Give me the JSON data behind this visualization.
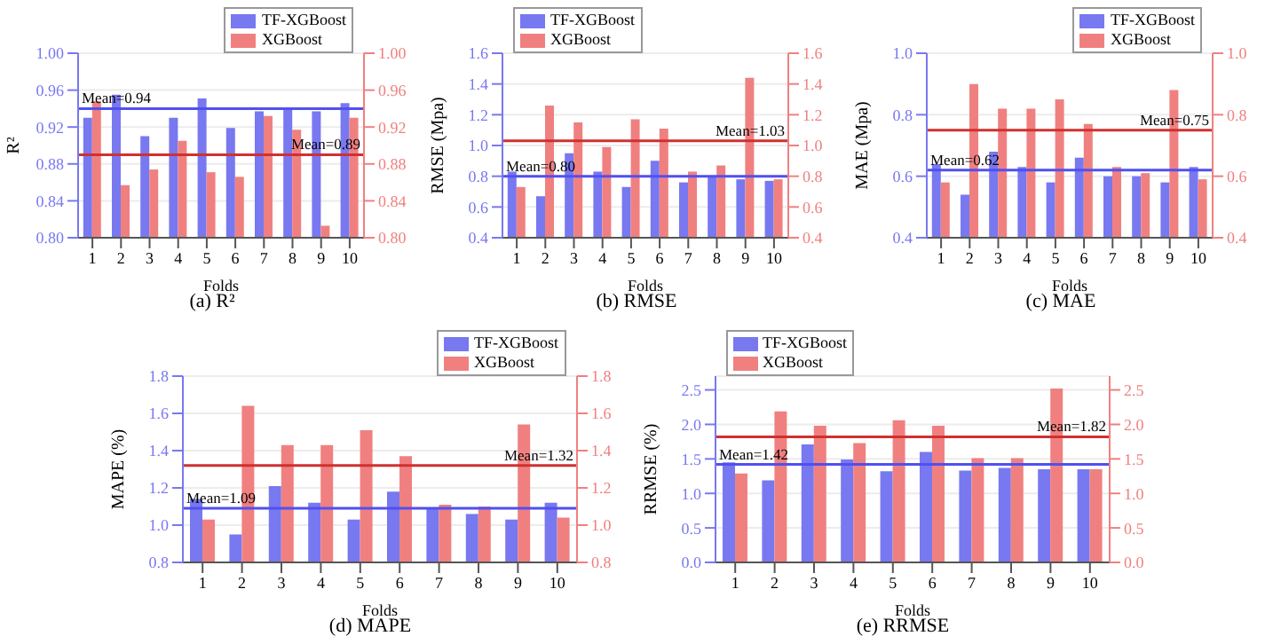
{
  "chart_data": [
    {
      "type": "bar",
      "title": "(a) R²",
      "xlabel": "Folds",
      "ylabel": "R²",
      "categories": [
        "1",
        "2",
        "3",
        "4",
        "5",
        "6",
        "7",
        "8",
        "9",
        "10"
      ],
      "legend": "top right",
      "grid": "y",
      "series": [
        {
          "name": "TF-XGBoost",
          "color": "#7878f0",
          "axis": "y",
          "values": [
            0.93,
            0.955,
            0.91,
            0.93,
            0.951,
            0.919,
            0.937,
            0.94,
            0.937,
            0.946
          ]
        },
        {
          "name": "XGBoost",
          "color": "#f08080",
          "axis": "y2",
          "values": [
            0.948,
            0.857,
            0.874,
            0.905,
            0.871,
            0.866,
            0.932,
            0.917,
            0.813,
            0.93
          ]
        }
      ],
      "ylim": [
        0.8,
        1.0
      ],
      "yticks": [
        {
          "value": 0.8,
          "label": "0.80"
        },
        {
          "value": 0.84,
          "label": "0.84"
        },
        {
          "value": 0.88,
          "label": "0.88"
        },
        {
          "value": 0.92,
          "label": "0.92"
        },
        {
          "value": 0.96,
          "label": "0.96"
        },
        {
          "value": 1.0,
          "label": "1.00"
        }
      ],
      "y2lim": [
        0.8,
        1.0
      ],
      "y2ticks": [
        {
          "value": 0.8,
          "label": "0.80"
        },
        {
          "value": 0.84,
          "label": "0.84"
        },
        {
          "value": 0.88,
          "label": "0.88"
        },
        {
          "value": 0.92,
          "label": "0.92"
        },
        {
          "value": 0.96,
          "label": "0.96"
        },
        {
          "value": 1.0,
          "label": "1.00"
        }
      ],
      "ref_lines": [
        {
          "axis": "y",
          "value": 0.94,
          "label": "Mean=0.94",
          "color": "#5050f0"
        },
        {
          "axis": "y2",
          "value": 0.89,
          "label": "Mean=0.89",
          "color": "#d03030"
        }
      ]
    },
    {
      "type": "bar",
      "title": "(b) RMSE",
      "xlabel": "Folds",
      "ylabel": "RMSE (Mpa)",
      "categories": [
        "1",
        "2",
        "3",
        "4",
        "5",
        "6",
        "7",
        "8",
        "9",
        "10"
      ],
      "legend": "top left",
      "grid": "y",
      "series": [
        {
          "name": "TF-XGBoost",
          "color": "#7878f0",
          "axis": "y",
          "values": [
            0.83,
            0.67,
            0.95,
            0.83,
            0.73,
            0.9,
            0.76,
            0.8,
            0.78,
            0.77
          ]
        },
        {
          "name": "XGBoost",
          "color": "#f08080",
          "axis": "y2",
          "values": [
            0.73,
            1.26,
            1.15,
            0.99,
            1.17,
            1.11,
            0.83,
            0.87,
            1.44,
            0.78
          ]
        }
      ],
      "ylim": [
        0.4,
        1.6
      ],
      "yticks": [
        0.4,
        0.6,
        0.8,
        {
          "value": 1.0,
          "label": "1.0"
        },
        1.2,
        1.4,
        1.6
      ],
      "y2lim": [
        0.4,
        1.6
      ],
      "y2ticks": [
        0.4,
        0.6,
        0.8,
        {
          "value": 1.0,
          "label": "1.0"
        },
        1.2,
        1.4,
        1.6
      ],
      "ref_lines": [
        {
          "axis": "y",
          "value": 0.8,
          "label": "Mean=0.80",
          "color": "#5050f0"
        },
        {
          "axis": "y2",
          "value": 1.03,
          "label": "Mean=1.03",
          "color": "#d03030"
        }
      ]
    },
    {
      "type": "bar",
      "title": "(c) MAE",
      "xlabel": "Folds",
      "ylabel": "MAE (Mpa)",
      "categories": [
        "1",
        "2",
        "3",
        "4",
        "5",
        "6",
        "7",
        "8",
        "9",
        "10"
      ],
      "legend": "top right",
      "grid": "y",
      "series": [
        {
          "name": "TF-XGBoost",
          "color": "#7878f0",
          "axis": "y",
          "values": [
            0.64,
            0.54,
            0.68,
            0.63,
            0.58,
            0.66,
            0.6,
            0.6,
            0.58,
            0.63
          ]
        },
        {
          "name": "XGBoost",
          "color": "#f08080",
          "axis": "y2",
          "values": [
            0.58,
            0.9,
            0.82,
            0.82,
            0.85,
            0.77,
            0.63,
            0.61,
            0.88,
            0.59
          ]
        }
      ],
      "ylim": [
        0.4,
        1.0
      ],
      "yticks": [
        0.4,
        0.6,
        0.8,
        {
          "value": 1.0,
          "label": "1.0"
        }
      ],
      "y2lim": [
        0.4,
        1.0
      ],
      "y2ticks": [
        0.4,
        0.6,
        0.8,
        {
          "value": 1.0,
          "label": "1.0"
        }
      ],
      "ref_lines": [
        {
          "axis": "y",
          "value": 0.62,
          "label": "Mean=0.62",
          "color": "#5050f0"
        },
        {
          "axis": "y2",
          "value": 0.75,
          "label": "Mean=0.75",
          "color": "#d03030"
        }
      ]
    },
    {
      "type": "bar",
      "title": "(d) MAPE",
      "xlabel": "Folds",
      "ylabel": "MAPE (%)",
      "categories": [
        "1",
        "2",
        "3",
        "4",
        "5",
        "6",
        "7",
        "8",
        "9",
        "10"
      ],
      "legend": "top right",
      "grid": "y",
      "series": [
        {
          "name": "TF-XGBoost",
          "color": "#7878f0",
          "axis": "y",
          "values": [
            1.14,
            0.95,
            1.21,
            1.12,
            1.03,
            1.18,
            1.09,
            1.06,
            1.03,
            1.12
          ]
        },
        {
          "name": "XGBoost",
          "color": "#f08080",
          "axis": "y2",
          "values": [
            1.03,
            1.64,
            1.43,
            1.43,
            1.51,
            1.37,
            1.11,
            1.1,
            1.54,
            1.04
          ]
        }
      ],
      "ylim": [
        0.8,
        1.8
      ],
      "yticks": [
        0.8,
        {
          "value": 1.0,
          "label": "1.0"
        },
        1.2,
        1.4,
        1.6,
        1.8
      ],
      "y2lim": [
        0.8,
        1.8
      ],
      "y2ticks": [
        0.8,
        {
          "value": 1.0,
          "label": "1.0"
        },
        1.2,
        1.4,
        1.6,
        1.8
      ],
      "ref_lines": [
        {
          "axis": "y",
          "value": 1.09,
          "label": "Mean=1.09",
          "color": "#5050f0"
        },
        {
          "axis": "y2",
          "value": 1.32,
          "label": "Mean=1.32",
          "color": "#d03030"
        }
      ]
    },
    {
      "type": "bar",
      "title": "(e) RRMSE",
      "xlabel": "Folds",
      "ylabel": "RRMSE (%)",
      "categories": [
        "1",
        "2",
        "3",
        "4",
        "5",
        "6",
        "7",
        "8",
        "9",
        "10"
      ],
      "legend": "top left",
      "grid": "y",
      "series": [
        {
          "name": "TF-XGBoost",
          "color": "#7878f0",
          "axis": "y",
          "values": [
            1.45,
            1.19,
            1.71,
            1.49,
            1.32,
            1.6,
            1.33,
            1.37,
            1.35,
            1.35
          ]
        },
        {
          "name": "XGBoost",
          "color": "#f08080",
          "axis": "y2",
          "values": [
            1.29,
            2.19,
            1.98,
            1.73,
            2.06,
            1.98,
            1.51,
            1.51,
            2.52,
            1.35
          ]
        }
      ],
      "ylim": [
        0,
        2.7
      ],
      "yticks": [
        {
          "value": 0,
          "label": "0.0"
        },
        0.5,
        {
          "value": 1,
          "label": "1.0"
        },
        1.5,
        {
          "value": 2,
          "label": "2.0"
        },
        2.5
      ],
      "y2lim": [
        0,
        2.7
      ],
      "y2ticks": [
        {
          "value": 0,
          "label": "0.0"
        },
        0.5,
        {
          "value": 1,
          "label": "1.0"
        },
        1.5,
        {
          "value": 2,
          "label": "2.0"
        },
        2.5
      ],
      "ref_lines": [
        {
          "axis": "y",
          "value": 1.42,
          "label": "Mean=1.42",
          "color": "#5050f0"
        },
        {
          "axis": "y2",
          "value": 1.82,
          "label": "Mean=1.82",
          "color": "#d03030"
        }
      ]
    }
  ]
}
